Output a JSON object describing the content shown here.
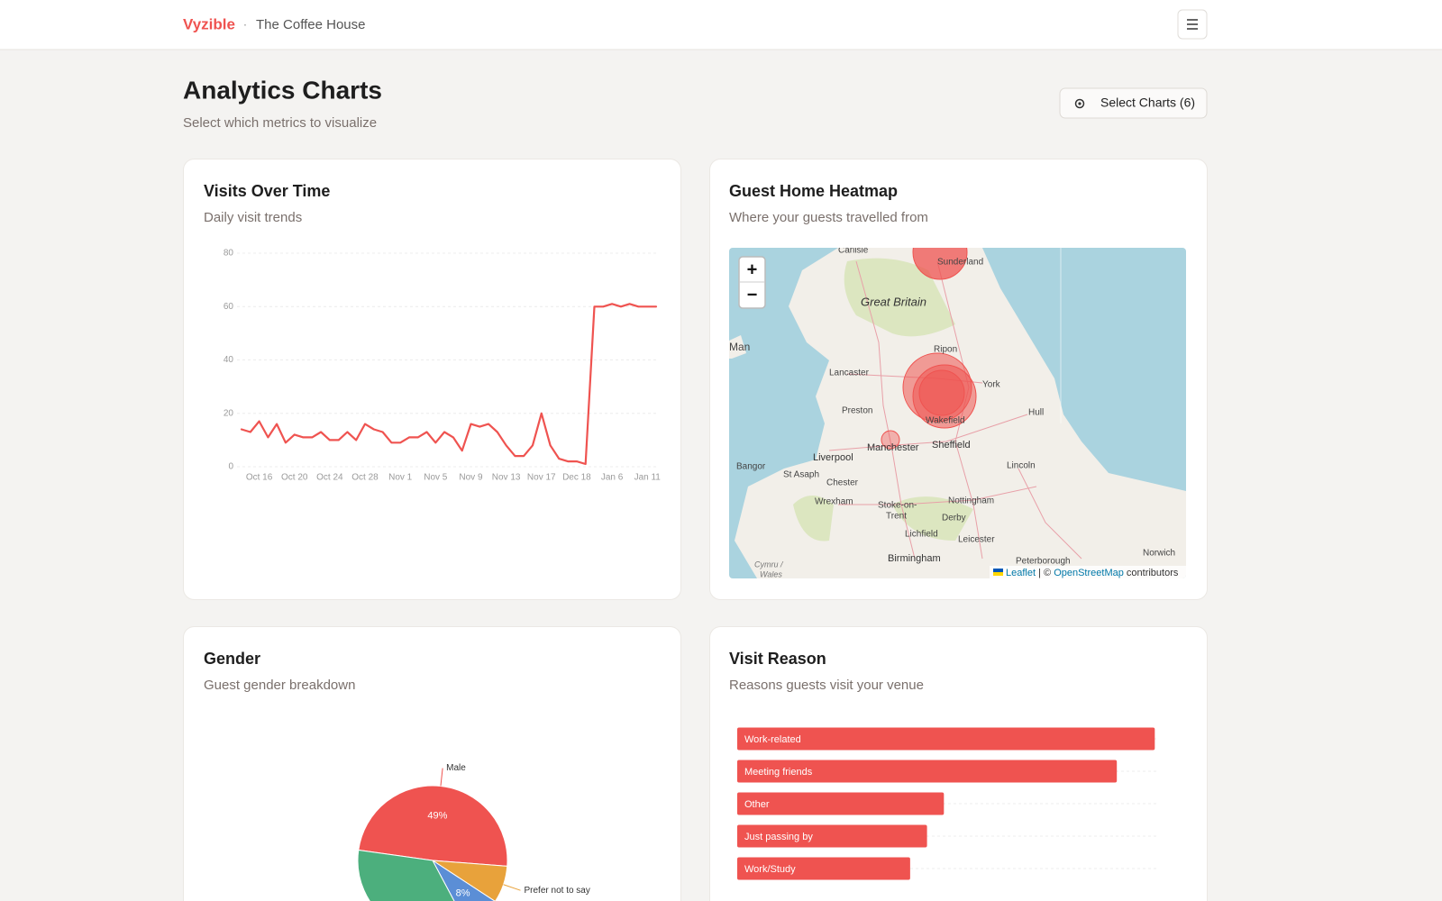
{
  "header": {
    "brand": "Vyzible",
    "separator": "·",
    "venue": "The Coffee House"
  },
  "page": {
    "title": "Analytics Charts",
    "subtitle": "Select which metrics to visualize",
    "button": "Select Charts (6)"
  },
  "map": {
    "title": "Guest Home Heatmap",
    "subtitle": "Where your guests travelled from",
    "zoom": [
      "+",
      "−"
    ],
    "places": [
      "Carlisle",
      "Sunderland",
      "Great Britain",
      "Man",
      "Lancaster",
      "Ripon",
      "York",
      "Preston",
      "Hull",
      "Wakefield",
      "Manchester",
      "Sheffield",
      "Liverpool",
      "Bangor",
      "St Asaph",
      "Lincoln",
      "Chester",
      "Wrexham",
      "Nottingham",
      "Stoke-on-",
      "Trent",
      "Derby",
      "Lichfield",
      "Leicester",
      "Birmingham",
      "Peterborough",
      "Norwich",
      "Cymru /",
      "Wales"
    ],
    "attribution": [
      "Leaflet",
      "| ©",
      "OpenStreetMap",
      "contributors"
    ]
  },
  "chart_data": [
    {
      "type": "line",
      "title": "Visits Over Time",
      "subtitle": "Daily visit trends",
      "categories": [
        null,
        null,
        "Oct 16",
        null,
        null,
        null,
        "Oct 20",
        null,
        null,
        null,
        "Oct 24",
        null,
        null,
        null,
        "Oct 28",
        null,
        null,
        null,
        "Nov 1",
        null,
        null,
        null,
        "Nov 5",
        null,
        null,
        null,
        "Nov 9",
        null,
        null,
        null,
        "Nov 13",
        null,
        null,
        null,
        "Nov 17",
        null,
        null,
        null,
        "Dec 18",
        null,
        null,
        null,
        "Jan 6",
        null,
        null,
        null,
        "Jan 11",
        null
      ],
      "values": [
        14,
        13,
        17,
        11,
        16,
        9,
        12,
        11,
        11,
        13,
        10,
        10,
        13,
        10,
        16,
        14,
        13,
        9,
        9,
        11,
        11,
        13,
        9,
        13,
        11,
        6,
        16,
        15,
        16,
        13,
        8,
        4,
        4,
        8,
        20,
        8,
        3,
        2,
        2,
        1,
        60,
        60,
        61,
        60,
        61,
        60,
        60,
        60
      ],
      "color": "#ef5350",
      "ylim": [
        0,
        80
      ],
      "yticks": [
        0,
        20,
        40,
        60,
        80
      ],
      "grid": true
    },
    {
      "type": "pie",
      "title": "Gender",
      "subtitle": "Guest gender breakdown",
      "categories": [
        "Male",
        "Prefer not to say",
        null,
        null
      ],
      "values": [
        49,
        8,
        8,
        35
      ],
      "value_labels": [
        "49%",
        null,
        "8%",
        null
      ],
      "colors": [
        "#ef5350",
        "#e8a23b",
        "#5b8ed6",
        "#4caf7d"
      ]
    },
    {
      "type": "hbar",
      "title": "Visit Reason",
      "subtitle": "Reasons guests visit your venue",
      "categories": [
        "Work-related",
        "Meeting friends",
        "Other",
        "Just passing by",
        "Work/Study"
      ],
      "values": [
        99,
        90,
        49,
        45,
        41
      ],
      "xlim": [
        0,
        100
      ],
      "color": "#ef5350",
      "grid": true
    }
  ]
}
